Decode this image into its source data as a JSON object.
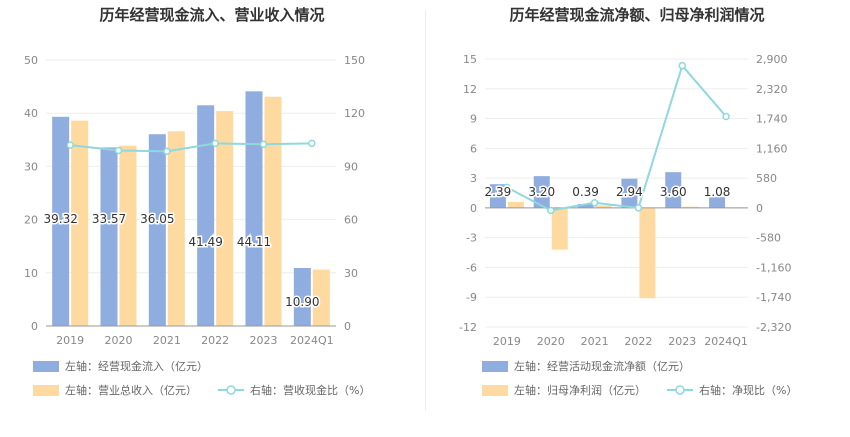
{
  "colors": {
    "bar_blue": "#8fadde",
    "bar_orange": "#fed9a0",
    "line_teal": "#8ed8de",
    "axis_text": "#888888",
    "grid": "#eeeeee",
    "title": "#333333"
  },
  "chart_data": [
    {
      "type": "bar",
      "title": "历年经营现金流入、营业收入情况",
      "categories": [
        "2019",
        "2020",
        "2021",
        "2022",
        "2023",
        "2024Q1"
      ],
      "left_axis": {
        "ylim": [
          0,
          50
        ],
        "ticks": [
          "0",
          "10",
          "20",
          "30",
          "40",
          "50"
        ]
      },
      "right_axis": {
        "ylim": [
          0,
          150
        ],
        "ticks": [
          "0",
          "30",
          "60",
          "90",
          "120",
          "150"
        ]
      },
      "series": [
        {
          "name": "左轴：经营现金流入（亿元）",
          "kind": "bar",
          "axis": "left",
          "color": "#8fadde",
          "values": [
            39.32,
            33.57,
            36.05,
            41.49,
            44.11,
            10.9
          ],
          "labels": [
            "39.32",
            "33.57",
            "36.05",
            "41.49",
            "44.11",
            "10.90"
          ]
        },
        {
          "name": "左轴：营业总收入（亿元）",
          "kind": "bar",
          "axis": "left",
          "color": "#fed9a0",
          "values": [
            38.6,
            33.9,
            36.6,
            40.4,
            43.1,
            10.6
          ]
        },
        {
          "name": "右轴：营收现金比（%）",
          "kind": "line",
          "axis": "right",
          "color": "#8ed8de",
          "values": [
            102,
            99,
            98.5,
            103,
            102.5,
            103
          ]
        }
      ],
      "legend": {
        "placement": "bottom-left"
      },
      "grid": true
    },
    {
      "type": "bar",
      "title": "历年经营现金流净额、归母净利润情况",
      "categories": [
        "2019",
        "2020",
        "2021",
        "2022",
        "2023",
        "2024Q1"
      ],
      "left_axis": {
        "ylim": [
          -12,
          15
        ],
        "ticks": [
          "-12",
          "-9",
          "-6",
          "-3",
          "0",
          "3",
          "6",
          "9",
          "12",
          "15"
        ]
      },
      "right_axis": {
        "ylim": [
          -2320,
          2900
        ],
        "ticks": [
          "-2,320",
          "-1,740",
          "-1,160",
          "-580",
          "0",
          "580",
          "1,160",
          "1,740",
          "2,320",
          "2,900"
        ]
      },
      "series": [
        {
          "name": "左轴：经营活动现金流净额（亿元）",
          "kind": "bar",
          "axis": "left",
          "color": "#8fadde",
          "values": [
            2.39,
            3.2,
            0.39,
            2.94,
            3.6,
            1.08
          ],
          "labels": [
            "2.39",
            "3.20",
            "0.39",
            "2.94",
            "3.60",
            "1.08"
          ]
        },
        {
          "name": "左轴：归母净利润（亿元）",
          "kind": "bar",
          "axis": "left",
          "color": "#fed9a0",
          "values": [
            0.6,
            -4.2,
            0.25,
            -9.1,
            0.12,
            0.05
          ]
        },
        {
          "name": "右轴：净现比（%）",
          "kind": "line",
          "axis": "right",
          "color": "#8ed8de",
          "values": [
            400,
            -50,
            100,
            0,
            2770,
            1780
          ]
        }
      ],
      "legend": {
        "placement": "bottom-left"
      },
      "grid": true
    }
  ]
}
